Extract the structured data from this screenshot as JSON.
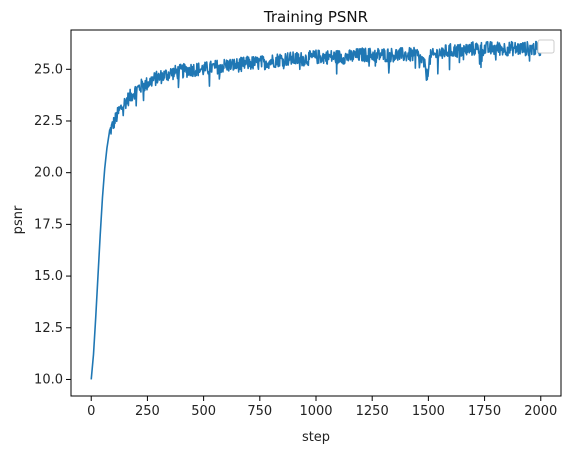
{
  "chart_data": {
    "type": "line",
    "title": "Training PSNR",
    "xlabel": "step",
    "ylabel": "psnr",
    "xlim": [
      -90,
      2090
    ],
    "ylim": [
      9.2,
      26.9
    ],
    "xticks": [
      0,
      250,
      500,
      750,
      1000,
      1250,
      1500,
      1750,
      2000
    ],
    "xtick_labels": [
      "0",
      "250",
      "500",
      "750",
      "1000",
      "1250",
      "1500",
      "1750",
      "2000"
    ],
    "yticks": [
      10.0,
      12.5,
      15.0,
      17.5,
      20.0,
      22.5,
      25.0
    ],
    "ytick_labels": [
      "10.0",
      "12.5",
      "15.0",
      "17.5",
      "20.0",
      "22.5",
      "25.0"
    ],
    "grid": false,
    "legend": {
      "placement": "top-right",
      "entries": []
    },
    "series": [
      {
        "color": "#1f77b4",
        "x": [
          0,
          10,
          20,
          30,
          40,
          50,
          60,
          70,
          80,
          100,
          125,
          150,
          175,
          200,
          225,
          250,
          275,
          300,
          350,
          400,
          450,
          500,
          550,
          600,
          650,
          700,
          750,
          800,
          850,
          900,
          950,
          1000,
          1050,
          1100,
          1150,
          1200,
          1250,
          1300,
          1350,
          1400,
          1450,
          1480,
          1495,
          1500,
          1510,
          1550,
          1600,
          1650,
          1700,
          1750,
          1800,
          1850,
          1900,
          1950,
          2000
        ],
        "y": [
          10.0,
          11.2,
          13.0,
          15.0,
          17.0,
          18.8,
          20.2,
          21.2,
          21.9,
          22.4,
          23.0,
          23.4,
          23.7,
          24.0,
          24.2,
          24.3,
          24.5,
          24.6,
          24.8,
          24.9,
          25.0,
          25.0,
          25.1,
          25.2,
          25.2,
          25.3,
          25.3,
          25.4,
          25.5,
          25.5,
          25.5,
          25.6,
          25.6,
          25.6,
          25.6,
          25.7,
          25.7,
          25.7,
          25.7,
          25.7,
          25.7,
          25.3,
          24.6,
          25.2,
          25.6,
          25.8,
          25.9,
          25.9,
          26.0,
          26.0,
          26.0,
          26.0,
          26.0,
          26.0,
          26.0
        ],
        "noise_amplitude": 0.35
      }
    ]
  }
}
